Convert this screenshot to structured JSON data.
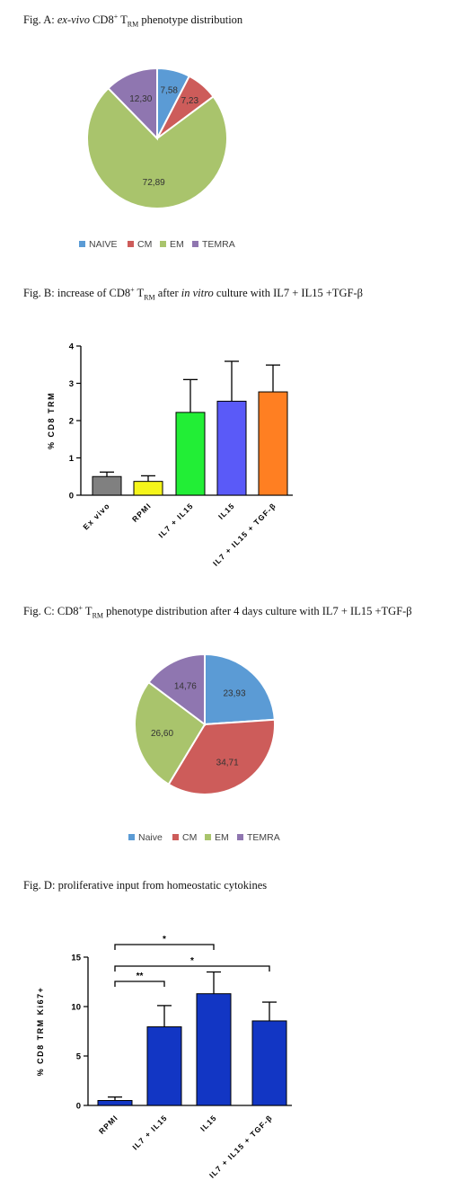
{
  "figures": {
    "a": {
      "fig_label": "Fig. A:",
      "title_italic": "ex-vivo",
      "title_cd8": "CD8",
      "title_sup": "+",
      "title_t": "T",
      "title_sub": "RM",
      "title_rest": "phenotype distribution"
    },
    "b": {
      "fig_label": "Fig. B:",
      "pre": "increase of CD8",
      "sup": "+",
      "t": "T",
      "sub": "RM",
      "after": "after",
      "italic": "in vitro",
      "rest": "culture with IL7 + IL15 +TGF-β"
    },
    "c": {
      "fig_label": "Fig. C:",
      "pre": "CD8",
      "sup": "+",
      "t": "T",
      "sub": "RM",
      "rest": "phenotype distribution after 4 days culture with IL7 + IL15 +TGF-β"
    },
    "d": {
      "fig_label": "Fig. D:",
      "rest": "proliferative input from homeostatic cytokines"
    }
  },
  "chart_data": [
    {
      "id": "fig-a",
      "type": "pie",
      "categories": [
        "NAIVE",
        "CM",
        "EM",
        "TEMRA"
      ],
      "values": [
        7.58,
        7.23,
        72.89,
        12.3
      ],
      "labels": [
        "7,58",
        "7,23",
        "72,89",
        "12,30"
      ],
      "colors": [
        "#5b9bd5",
        "#cd5c5a",
        "#a9c46c",
        "#8f76b0"
      ],
      "legend_position": "bottom"
    },
    {
      "id": "fig-b",
      "type": "bar",
      "categories": [
        "Ex vivo",
        "RPMI",
        "IL7 + IL15",
        "IL15",
        "IL7 + IL15 + TGF-β"
      ],
      "values": [
        0.5,
        0.37,
        2.22,
        2.52,
        2.77
      ],
      "errors": [
        0.12,
        0.15,
        0.88,
        1.07,
        0.72
      ],
      "colors": [
        "#808080",
        "#f5f51a",
        "#22ee36",
        "#5a5af8",
        "#ff7f22"
      ],
      "ylabel": "% CD8 TRM",
      "ylim": [
        0,
        4
      ],
      "yticks": [
        "0",
        "1",
        "2",
        "3",
        "4"
      ]
    },
    {
      "id": "fig-c",
      "type": "pie",
      "categories": [
        "Naive",
        "CM",
        "EM",
        "TEMRA"
      ],
      "values": [
        23.93,
        34.71,
        26.6,
        14.76
      ],
      "labels": [
        "23,93",
        "34,71",
        "26,60",
        "14,76"
      ],
      "colors": [
        "#5b9bd5",
        "#cd5c5a",
        "#a9c46c",
        "#8f76b0"
      ],
      "legend_position": "bottom"
    },
    {
      "id": "fig-d",
      "type": "bar",
      "categories": [
        "RPMI",
        "IL7 + IL15",
        "IL15",
        "IL7 + IL15 + TGF-β"
      ],
      "values": [
        0.5,
        7.95,
        11.3,
        8.55
      ],
      "errors": [
        0.35,
        2.15,
        2.2,
        1.9
      ],
      "colors": [
        "#1236c4",
        "#1236c4",
        "#1236c4",
        "#1236c4"
      ],
      "ylabel": "% CD8 TRM Ki67+",
      "ylim": [
        0,
        15
      ],
      "yticks": [
        "0",
        "5",
        "10",
        "15"
      ],
      "significance": [
        {
          "from": 0,
          "to": 1,
          "label": "**"
        },
        {
          "from": 0,
          "to": 3,
          "label": "*"
        },
        {
          "from": 0,
          "to": 2,
          "label": "*"
        }
      ]
    }
  ]
}
